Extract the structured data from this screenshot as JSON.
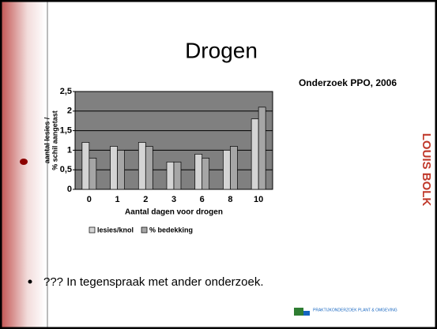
{
  "chart_data": {
    "type": "bar",
    "title": "Drogen",
    "ylabel": [
      "aantal lesies /",
      "% schil aangetast"
    ],
    "xlabel": "Aantal dagen voor drogen",
    "categories": [
      "0",
      "1",
      "2",
      "3",
      "6",
      "8",
      "10"
    ],
    "series": [
      {
        "name": "lesies/knol",
        "color": "#d4d4d4",
        "values": [
          1.2,
          1.1,
          1.2,
          0.7,
          0.9,
          1.0,
          1.8
        ]
      },
      {
        "name": "% bedekking",
        "color": "#a6a6a6",
        "values": [
          0.8,
          1.0,
          1.1,
          0.7,
          0.8,
          1.1,
          2.1
        ]
      }
    ],
    "ylim": [
      0,
      2.5
    ],
    "yticks": [
      0,
      {
        "value": 0.5,
        "label": "0,5"
      },
      1,
      {
        "value": 1.5,
        "label": "1,5"
      },
      2,
      {
        "value": 2.5,
        "label": "2,5"
      }
    ],
    "grid": true,
    "legend": "bottom"
  },
  "slide": {
    "source": "Onderzoek PPO, 2006",
    "bullet": "??? In tegenspraak met ander onderzoek.",
    "logo_right": "LOUIS BOLK",
    "logo_bottom": "PRAKTIJKONDERZOEK PLANT & OMGEVING"
  }
}
